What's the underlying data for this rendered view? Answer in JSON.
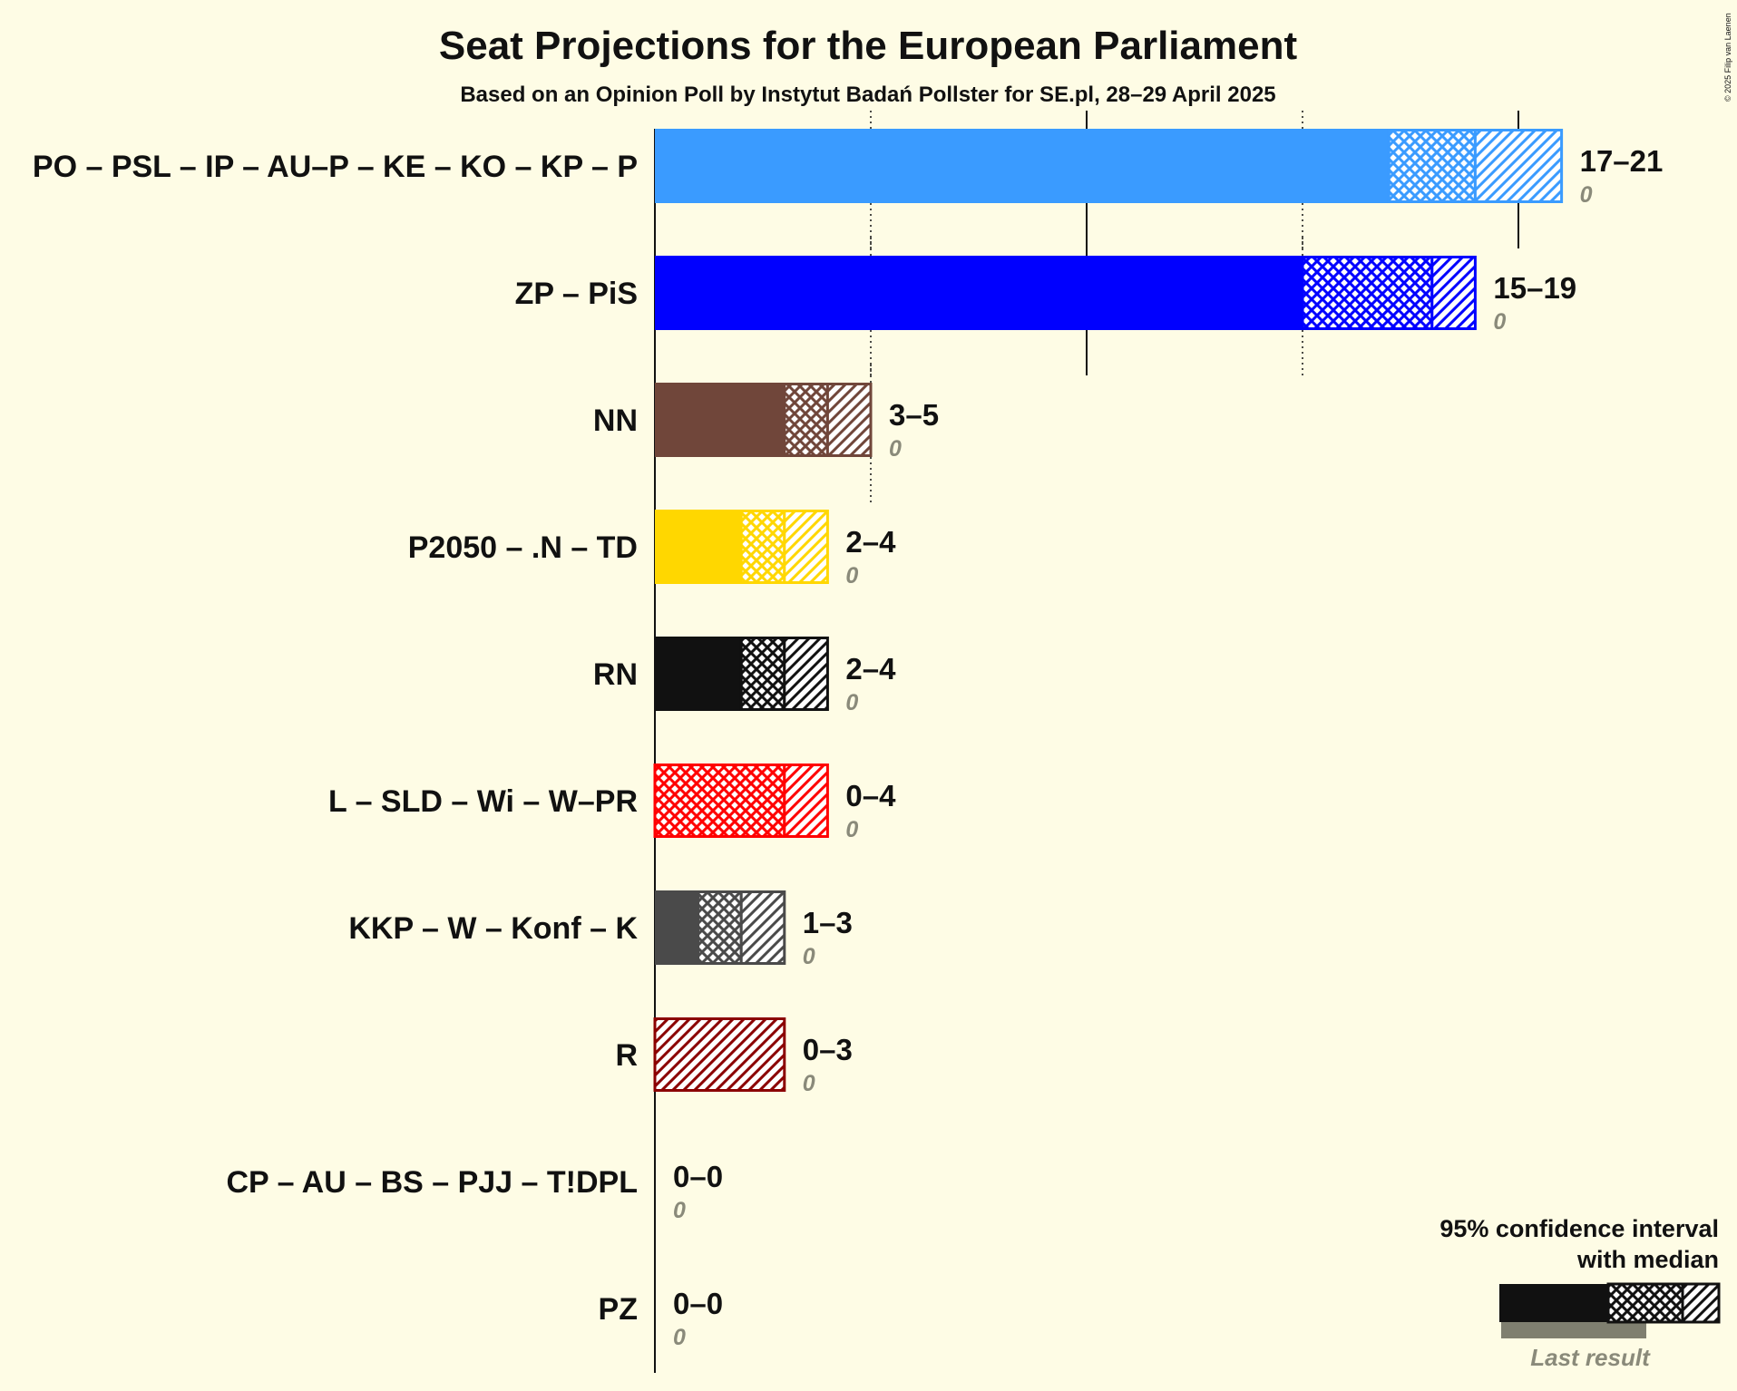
{
  "title": "Seat Projections for the European Parliament",
  "subtitle": "Based on an Opinion Poll by Instytut Badań Pollster for SE.pl, 28–29 April 2025",
  "copyright": "© 2025 Filip van Laenen",
  "legend": {
    "line1": "95% confidence interval",
    "line2": "with median",
    "last_result": "Last result"
  },
  "chart_data": {
    "type": "bar",
    "orientation": "horizontal",
    "title": "Seat Projections for the European Parliament",
    "subtitle": "Based on an Opinion Poll by Instytut Badań Pollster for SE.pl, 28–29 April 2025",
    "x_gridlines": [
      5,
      10,
      15,
      20
    ],
    "xlim": [
      0,
      21
    ],
    "parties": [
      {
        "label": "PO – PSL – IP – AU–P – KE – KO – KP – P",
        "low": 17,
        "median": 19,
        "high": 21,
        "range": "17–21",
        "last": 0,
        "last_label": "0",
        "color": "#3A9BFF"
      },
      {
        "label": "ZP – PiS",
        "low": 15,
        "median": 18,
        "high": 19,
        "range": "15–19",
        "last": 0,
        "last_label": "0",
        "color": "#0000FF"
      },
      {
        "label": "NN",
        "low": 3,
        "median": 4,
        "high": 5,
        "range": "3–5",
        "last": 0,
        "last_label": "0",
        "color": "#70463A"
      },
      {
        "label": "P2050 – .N – TD",
        "low": 2,
        "median": 3,
        "high": 4,
        "range": "2–4",
        "last": 0,
        "last_label": "0",
        "color": "#FFD700"
      },
      {
        "label": "RN",
        "low": 2,
        "median": 3,
        "high": 4,
        "range": "2–4",
        "last": 0,
        "last_label": "0",
        "color": "#111111"
      },
      {
        "label": "L – SLD – Wi – W–PR",
        "low": 0,
        "median": 3,
        "high": 4,
        "range": "0–4",
        "last": 0,
        "last_label": "0",
        "color": "#FF0000"
      },
      {
        "label": "KKP – W – Konf – K",
        "low": 1,
        "median": 2,
        "high": 3,
        "range": "1–3",
        "last": 0,
        "last_label": "0",
        "color": "#4A4A4A"
      },
      {
        "label": "R",
        "low": 0,
        "median": 0,
        "high": 3,
        "range": "0–3",
        "last": 0,
        "last_label": "0",
        "color": "#8B0000"
      },
      {
        "label": "CP – AU – BS – PJJ – T!DPL",
        "low": 0,
        "median": 0,
        "high": 0,
        "range": "0–0",
        "last": 0,
        "last_label": "0",
        "color": "#777777"
      },
      {
        "label": "PZ",
        "low": 0,
        "median": 0,
        "high": 0,
        "range": "0–0",
        "last": 0,
        "last_label": "0",
        "color": "#777777"
      }
    ]
  }
}
